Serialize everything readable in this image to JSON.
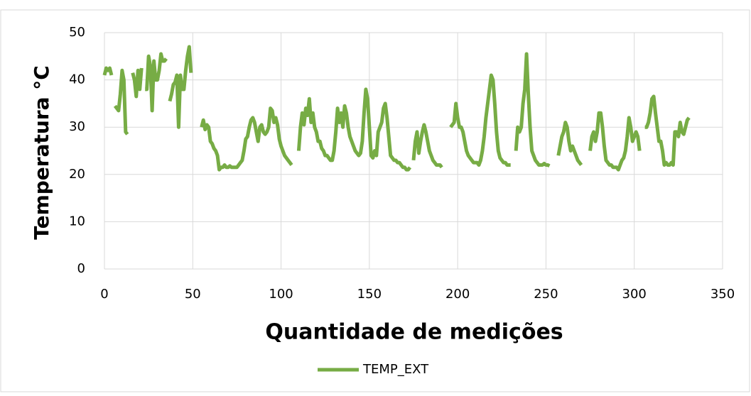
{
  "chart_data": {
    "type": "line",
    "ylabel": "Temperatura °C",
    "xlabel": "Quantidade de medições",
    "x": [
      0,
      1,
      2,
      3,
      4,
      5,
      6,
      7,
      8,
      9,
      10,
      11,
      12,
      13,
      14,
      15,
      16,
      17,
      18,
      19,
      20,
      21,
      22,
      23,
      24,
      25,
      26,
      27,
      28,
      29,
      30,
      31,
      32,
      33,
      34,
      35,
      36,
      37,
      38,
      39,
      40,
      41,
      42,
      43,
      44,
      45,
      46,
      47,
      48,
      49,
      50,
      51,
      52,
      53,
      54,
      55,
      56,
      57,
      58,
      59,
      60,
      61,
      62,
      63,
      64,
      65,
      66,
      67,
      68,
      69,
      70,
      71,
      72,
      73,
      74,
      75,
      76,
      77,
      78,
      79,
      80,
      81,
      82,
      83,
      84,
      85,
      86,
      87,
      88,
      89,
      90,
      91,
      92,
      93,
      94,
      95,
      96,
      97,
      98,
      99,
      100,
      101,
      102,
      103,
      104,
      105,
      106,
      107,
      108,
      109,
      110,
      111,
      112,
      113,
      114,
      115,
      116,
      117,
      118,
      119,
      120,
      121,
      122,
      123,
      124,
      125,
      126,
      127,
      128,
      129,
      130,
      131,
      132,
      133,
      134,
      135,
      136,
      137,
      138,
      139,
      140,
      141,
      142,
      143,
      144,
      145,
      146,
      147,
      148,
      149,
      150,
      151,
      152,
      153,
      154,
      155,
      156,
      157,
      158,
      159,
      160,
      161,
      162,
      163,
      164,
      165,
      166,
      167,
      168,
      169,
      170,
      171,
      172,
      173,
      174,
      175,
      176,
      177,
      178,
      179,
      180,
      181,
      182,
      183,
      184,
      185,
      186,
      187,
      188,
      189,
      190,
      191,
      192,
      193,
      194,
      195,
      196,
      197,
      198,
      199,
      200,
      201,
      202,
      203,
      204,
      205,
      206,
      207,
      208,
      209,
      210,
      211,
      212,
      213,
      214,
      215,
      216,
      217,
      218,
      219,
      220,
      221,
      222,
      223,
      224,
      225,
      226,
      227,
      228,
      229,
      230,
      231,
      232,
      233,
      234,
      235,
      236,
      237,
      238,
      239,
      240,
      241,
      242,
      243,
      244,
      245,
      246,
      247,
      248,
      249,
      250,
      251,
      252,
      253,
      254,
      255,
      256,
      257,
      258,
      259,
      260,
      261,
      262,
      263,
      264,
      265,
      266,
      267,
      268,
      269,
      270,
      271,
      272,
      273,
      274,
      275,
      276,
      277,
      278,
      279,
      280,
      281,
      282,
      283,
      284,
      285,
      286,
      287,
      288,
      289,
      290,
      291,
      292,
      293,
      294,
      295,
      296,
      297,
      298,
      299,
      300,
      301,
      302,
      303,
      304,
      305,
      306,
      307,
      308,
      309,
      310,
      311,
      312,
      313,
      314,
      315,
      316,
      317,
      318,
      319,
      320,
      321,
      322,
      323,
      324,
      325,
      326,
      327,
      328,
      329,
      330,
      331
    ],
    "series": [
      {
        "name": "TEMP_EXT",
        "color": "#77ac45",
        "values": [
          41,
          42.5,
          42,
          42.5,
          41,
          null,
          34.5,
          34,
          33.5,
          37,
          42,
          40,
          29,
          28.5,
          null,
          null,
          41.5,
          40,
          36.5,
          42,
          38,
          42.5,
          null,
          38,
          38,
          45,
          43,
          33.5,
          44,
          40,
          40,
          42,
          45.5,
          44,
          44,
          44.5,
          null,
          35.5,
          37,
          39,
          39.5,
          41,
          30,
          41,
          38,
          38,
          42,
          45,
          47,
          41.5,
          null,
          null,
          null,
          null,
          null,
          30,
          31.5,
          29.5,
          30.5,
          30,
          27,
          26.5,
          25.5,
          25,
          24,
          21,
          21.5,
          21.5,
          22,
          21.5,
          21.5,
          21.8,
          21.5,
          21.5,
          21.5,
          21.5,
          22,
          22.5,
          23,
          25,
          27.5,
          28,
          30,
          31.5,
          32,
          31,
          29,
          27,
          30,
          30.5,
          29,
          28.5,
          29,
          30,
          34,
          33.5,
          31,
          32,
          30.5,
          27.5,
          26,
          25,
          24,
          23.5,
          23,
          22.5,
          22,
          null,
          null,
          null,
          25,
          30,
          33,
          30.5,
          34,
          32.5,
          36,
          31,
          33,
          30,
          29,
          27,
          27,
          25.5,
          25,
          24,
          24,
          23.5,
          23,
          23,
          25,
          29,
          34,
          31,
          33,
          30,
          34.5,
          33,
          30,
          28,
          27,
          26,
          25,
          24.5,
          24,
          24.5,
          27,
          33,
          38,
          36,
          30,
          24,
          23.5,
          25,
          24,
          29,
          30,
          31,
          34,
          35,
          32,
          28,
          24,
          23.5,
          23,
          23,
          22.5,
          22.5,
          22,
          21.5,
          21.5,
          21,
          21,
          21.5,
          null,
          23,
          27,
          29,
          24.5,
          27,
          29,
          30.5,
          29,
          27,
          25,
          24,
          23,
          22.5,
          22,
          22,
          22,
          21.5,
          null,
          null,
          null,
          null,
          30,
          30.5,
          31,
          35,
          32,
          30,
          30,
          29,
          27,
          25,
          24,
          23.5,
          23,
          22.5,
          22.5,
          22.5,
          22,
          23,
          25,
          28,
          32,
          35,
          38,
          41,
          40,
          35,
          29,
          25,
          23.5,
          23,
          22.5,
          22.5,
          22,
          22,
          22,
          null,
          null,
          25,
          30,
          29,
          30,
          35,
          38,
          45.5,
          37,
          30,
          25,
          24,
          23,
          22.5,
          22,
          22,
          22,
          22.3,
          22,
          22,
          21.8,
          null,
          null,
          null,
          null,
          24,
          26,
          28,
          29,
          31,
          30,
          27,
          25,
          26,
          25,
          24,
          23,
          22.5,
          22,
          null,
          null,
          null,
          null,
          25,
          28,
          29,
          27,
          29,
          33,
          33,
          30,
          26,
          23,
          22.5,
          22,
          22,
          21.5,
          21.5,
          21.5,
          21,
          22,
          23,
          23.5,
          25,
          28,
          32,
          30,
          27,
          28,
          29,
          28,
          25,
          null,
          null,
          30,
          30,
          31,
          33,
          36,
          36.5,
          33,
          30,
          27,
          27,
          25,
          22,
          22.5,
          22,
          22,
          22.5,
          22,
          29,
          29,
          28,
          31,
          29,
          28.5,
          30,
          31.5,
          32
        ]
      }
    ],
    "xlim": [
      0,
      350
    ],
    "xticks": [
      0,
      50,
      100,
      150,
      200,
      250,
      300,
      350
    ],
    "ylim": [
      0,
      50
    ],
    "yticks": [
      0,
      10,
      20,
      30,
      40,
      50
    ],
    "grid": true,
    "legend": "bottom"
  }
}
